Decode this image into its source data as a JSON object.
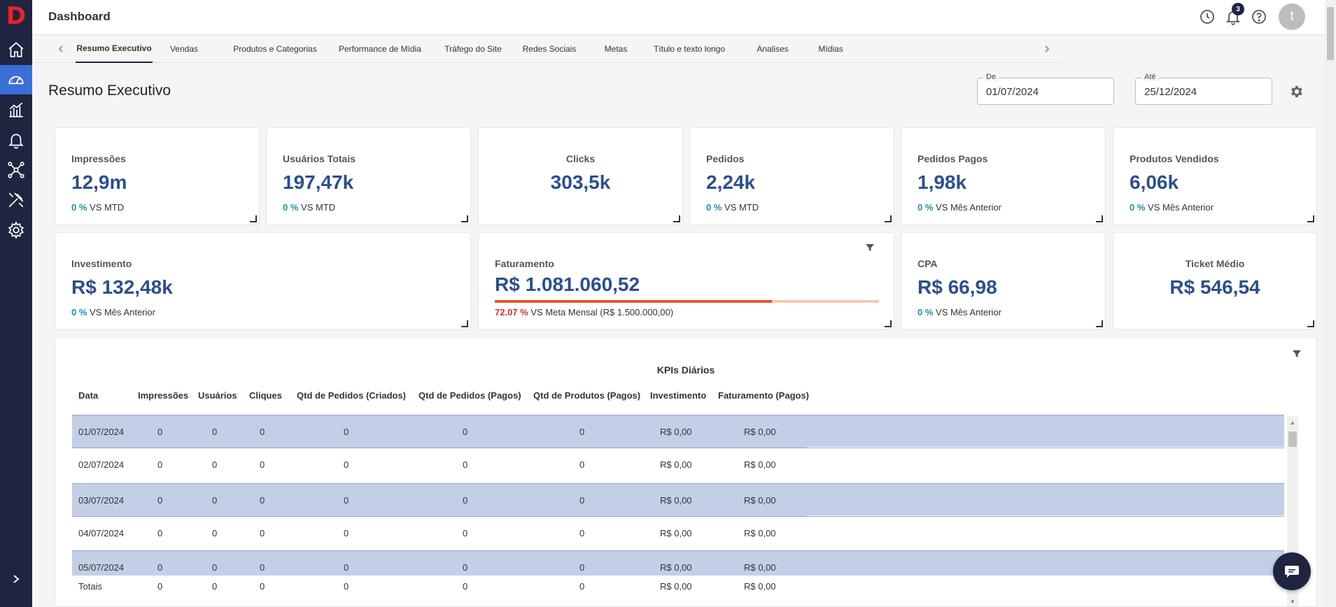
{
  "topbar": {
    "title": "Dashboard",
    "notification_count": "3",
    "avatar_initial": "t"
  },
  "sidebar": {
    "items": [
      {
        "name": "home-icon"
      },
      {
        "name": "dashboard-gauge-icon"
      },
      {
        "name": "analytics-chart-icon"
      },
      {
        "name": "bell-icon"
      },
      {
        "name": "network-icon"
      },
      {
        "name": "tools-icon"
      },
      {
        "name": "gear-icon"
      }
    ]
  },
  "tabs": [
    "Resumo Executivo",
    "Vendas",
    "Produtos e Categorias",
    "Performance de Mídia",
    "Tráfego do Site",
    "Redes Sociais",
    "Metas",
    "Título e texto longo",
    "Analises",
    "Mídias"
  ],
  "section": {
    "title": "Resumo Executivo",
    "date_from_label": "De",
    "date_from": "01/07/2024",
    "date_to_label": "Até",
    "date_to": "25/12/2024"
  },
  "cards": {
    "impressoes": {
      "title": "Impressões",
      "value": "12,9m",
      "pct": "0 %",
      "suffix": " VS MTD"
    },
    "usuarios": {
      "title": "Usuários Totais",
      "value": "197,47k",
      "pct": "0 %",
      "suffix": " VS MTD"
    },
    "clicks": {
      "title": "Clicks",
      "value": "303,5k"
    },
    "pedidos": {
      "title": "Pedidos",
      "value": "2,24k",
      "pct": "0 %",
      "suffix": " VS MTD"
    },
    "pedidos_pagos": {
      "title": "Pedidos Pagos",
      "value": "1,98k",
      "pct": "0 %",
      "suffix": " VS Mês Anterior"
    },
    "produtos_vendidos": {
      "title": "Produtos Vendidos",
      "value": "6,06k",
      "pct": "0 %",
      "suffix": " VS Mês Anterior"
    },
    "investimento": {
      "title": "Investimento",
      "value": "R$ 132,48k",
      "pct": "0 %",
      "suffix": " VS Mês Anterior"
    },
    "faturamento": {
      "title": "Faturamento",
      "value": "R$ 1.081.060,52",
      "pct": "72.07 %",
      "suffix": " VS Meta Mensal (R$ 1.500.000,00)",
      "progress": 0.7207
    },
    "cpa": {
      "title": "CPA",
      "value": "R$ 66,98",
      "pct": "0 %",
      "suffix": " VS Mês Anterior"
    },
    "ticket": {
      "title": "Ticket Médio",
      "value": "R$ 546,54"
    }
  },
  "kpi_table": {
    "title": "KPIs Diários",
    "columns": [
      "Data",
      "Impressões",
      "Usuários",
      "Cliques",
      "Qtd de Pedidos (Criados)",
      "Qtd de Pedidos (Pagos)",
      "Qtd de Produtos (Pagos)",
      "Investimento",
      "Faturamento (Pagos)"
    ],
    "rows": [
      [
        "01/07/2024",
        "0",
        "0",
        "0",
        "0",
        "0",
        "0",
        "R$ 0,00",
        "R$ 0,00"
      ],
      [
        "02/07/2024",
        "0",
        "0",
        "0",
        "0",
        "0",
        "0",
        "R$ 0,00",
        "R$ 0,00"
      ],
      [
        "03/07/2024",
        "0",
        "0",
        "0",
        "0",
        "0",
        "0",
        "R$ 0,00",
        "R$ 0,00"
      ],
      [
        "04/07/2024",
        "0",
        "0",
        "0",
        "0",
        "0",
        "0",
        "R$ 0,00",
        "R$ 0,00"
      ],
      [
        "05/07/2024",
        "0",
        "0",
        "0",
        "0",
        "0",
        "0",
        "R$ 0,00",
        "R$ 0,00"
      ]
    ],
    "totals": [
      "Totais",
      "0",
      "0",
      "0",
      "0",
      "0",
      "0",
      "R$ 0,00",
      "R$ 0,00"
    ]
  }
}
